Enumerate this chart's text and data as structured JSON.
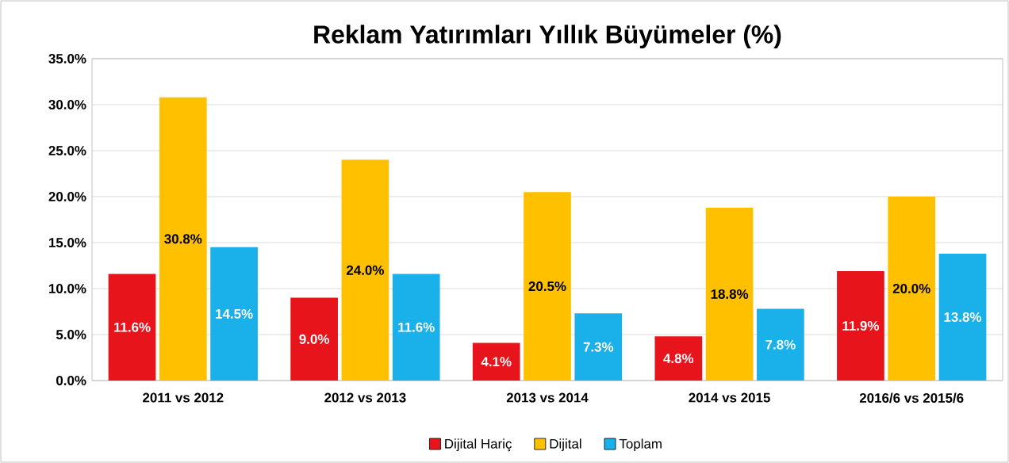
{
  "chart_data": {
    "type": "bar",
    "title": "Reklam Yatırımları Yıllık Büyümeler (%)",
    "categories": [
      "2011 vs 2012",
      "2012 vs 2013",
      "2013 vs 2014",
      "2014 vs 2015",
      "2016/6 vs 2015/6"
    ],
    "series": [
      {
        "name": "Dijital Hariç",
        "color": "#e8141b",
        "values": [
          11.6,
          9.0,
          4.1,
          4.8,
          11.9
        ],
        "value_labels": [
          "11.6%",
          "9.0%",
          "4.1%",
          "4.8%",
          "11.9%"
        ]
      },
      {
        "name": "Dijital",
        "color": "#ffc000",
        "values": [
          30.8,
          24.0,
          20.5,
          18.8,
          20.0
        ],
        "value_labels": [
          "30.8%",
          "24.0%",
          "20.5%",
          "18.8%",
          "20.0%"
        ]
      },
      {
        "name": "Toplam",
        "color": "#1ab0ea",
        "values": [
          14.5,
          11.6,
          7.3,
          7.8,
          13.8
        ],
        "value_labels": [
          "14.5%",
          "11.6%",
          "7.3%",
          "7.8%",
          "13.8%"
        ]
      }
    ],
    "ylim": [
      0,
      35
    ],
    "yticks": [
      {
        "value": 0,
        "label": "0.0%"
      },
      {
        "value": 5,
        "label": "5.0%"
      },
      {
        "value": 10,
        "label": "10.0%"
      },
      {
        "value": 15,
        "label": "15.0%"
      },
      {
        "value": 20,
        "label": "20.0%"
      },
      {
        "value": 25,
        "label": "25.0%"
      },
      {
        "value": 30,
        "label": "30.0%"
      },
      {
        "value": 35,
        "label": "35.0%"
      }
    ],
    "grid": "y",
    "legend": "bottom"
  }
}
